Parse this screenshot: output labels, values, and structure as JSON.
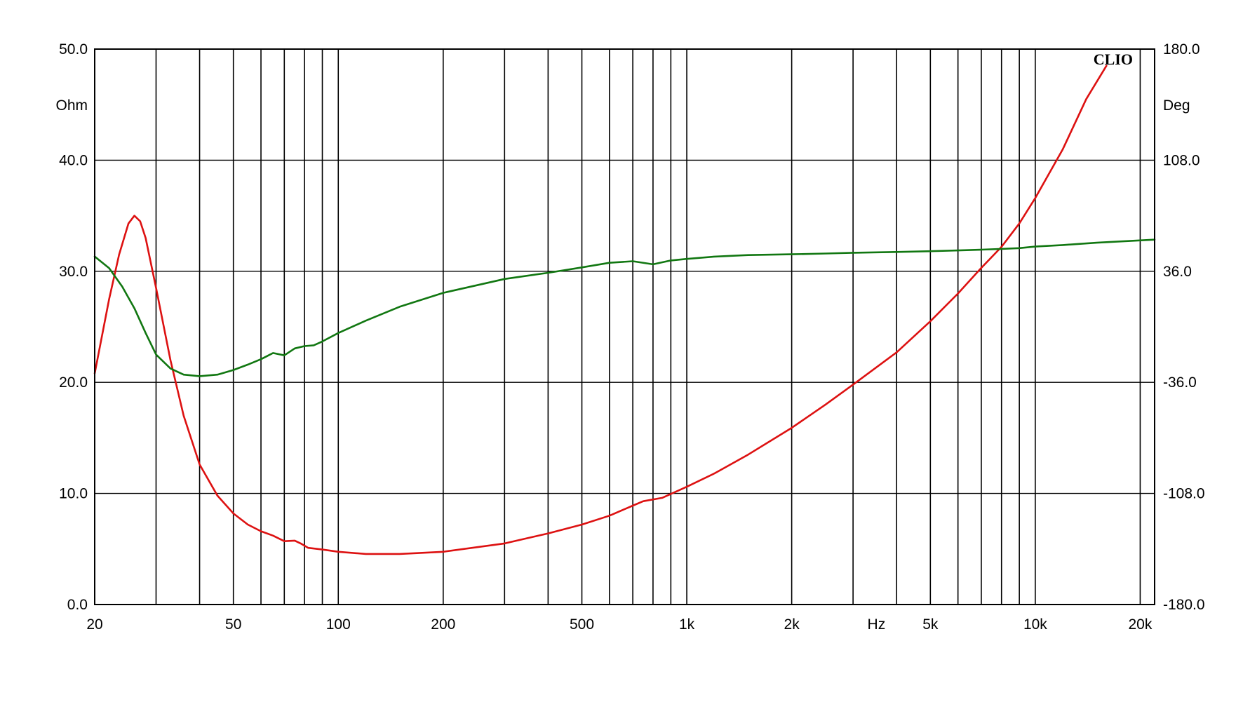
{
  "chart_data": {
    "type": "line",
    "brand": "CLIO",
    "x_scale": "log",
    "xlim": [
      20,
      22000
    ],
    "x_unit": "Hz",
    "y_left": {
      "unit": "Ohm",
      "ylim": [
        0,
        50
      ],
      "ticks": [
        "0.0",
        "10.0",
        "20.0",
        "30.0",
        "40.0",
        "50.0"
      ]
    },
    "y_right": {
      "unit": "Deg",
      "ylim": [
        -180,
        180
      ],
      "ticks": [
        "-180.0",
        "-108.0",
        "-36.0",
        "36.0",
        "108.0",
        "180.0"
      ]
    },
    "x_tick_labels": [
      {
        "value": 20,
        "label": "20"
      },
      {
        "value": 50,
        "label": "50"
      },
      {
        "value": 100,
        "label": "100"
      },
      {
        "value": 200,
        "label": "200"
      },
      {
        "value": 500,
        "label": "500"
      },
      {
        "value": 1000,
        "label": "1k"
      },
      {
        "value": 2000,
        "label": "2k"
      },
      {
        "value": 5000,
        "label": "5k"
      },
      {
        "value": 10000,
        "label": "10k"
      },
      {
        "value": 20000,
        "label": "20k"
      }
    ],
    "x_gridlines": [
      30,
      40,
      50,
      60,
      70,
      80,
      90,
      100,
      200,
      300,
      400,
      500,
      600,
      700,
      800,
      900,
      1000,
      2000,
      3000,
      4000,
      5000,
      6000,
      7000,
      8000,
      9000,
      10000,
      20000
    ],
    "grid": true,
    "colors": {
      "impedance": "#dd1111",
      "phase": "#117711",
      "grid": "#000000"
    },
    "series": [
      {
        "axis": "left",
        "color": "#dd1111",
        "points": [
          [
            20,
            20.8
          ],
          [
            22,
            27.5
          ],
          [
            23.5,
            31.5
          ],
          [
            25,
            34.3
          ],
          [
            26,
            35.0
          ],
          [
            27,
            34.5
          ],
          [
            28,
            33.0
          ],
          [
            30,
            28.5
          ],
          [
            33,
            22.0
          ],
          [
            36,
            17.0
          ],
          [
            40,
            12.6
          ],
          [
            45,
            9.8
          ],
          [
            50,
            8.2
          ],
          [
            55,
            7.2
          ],
          [
            60,
            6.6
          ],
          [
            65,
            6.2
          ],
          [
            70,
            5.7
          ],
          [
            75,
            5.75
          ],
          [
            78,
            5.5
          ],
          [
            82,
            5.1
          ],
          [
            90,
            4.95
          ],
          [
            100,
            4.75
          ],
          [
            120,
            4.55
          ],
          [
            150,
            4.55
          ],
          [
            200,
            4.75
          ],
          [
            300,
            5.5
          ],
          [
            400,
            6.4
          ],
          [
            500,
            7.2
          ],
          [
            600,
            8.0
          ],
          [
            700,
            8.9
          ],
          [
            750,
            9.3
          ],
          [
            850,
            9.6
          ],
          [
            1000,
            10.6
          ],
          [
            1200,
            11.8
          ],
          [
            1500,
            13.5
          ],
          [
            2000,
            15.9
          ],
          [
            2500,
            18.0
          ],
          [
            3000,
            19.8
          ],
          [
            4000,
            22.7
          ],
          [
            5000,
            25.5
          ],
          [
            6000,
            28.0
          ],
          [
            7000,
            30.3
          ],
          [
            8000,
            32.2
          ],
          [
            9000,
            34.3
          ],
          [
            10000,
            36.6
          ],
          [
            12000,
            41.0
          ],
          [
            14000,
            45.5
          ],
          [
            16000,
            48.5
          ]
        ]
      },
      {
        "axis": "right",
        "color": "#117711",
        "points": [
          [
            20,
            45.6
          ],
          [
            22,
            38.0
          ],
          [
            24,
            26.0
          ],
          [
            26,
            12.0
          ],
          [
            28,
            -4.0
          ],
          [
            30,
            -18.0
          ],
          [
            33,
            -27.0
          ],
          [
            36,
            -31.0
          ],
          [
            40,
            -32.0
          ],
          [
            45,
            -31.0
          ],
          [
            50,
            -28.0
          ],
          [
            55,
            -24.5
          ],
          [
            60,
            -21.0
          ],
          [
            65,
            -17.0
          ],
          [
            70,
            -18.5
          ],
          [
            75,
            -14.0
          ],
          [
            80,
            -12.5
          ],
          [
            85,
            -12.0
          ],
          [
            90,
            -9.5
          ],
          [
            100,
            -4.0
          ],
          [
            120,
            4.0
          ],
          [
            150,
            13.0
          ],
          [
            200,
            22.0
          ],
          [
            300,
            31.0
          ],
          [
            400,
            35.0
          ],
          [
            500,
            38.5
          ],
          [
            600,
            41.5
          ],
          [
            700,
            42.5
          ],
          [
            800,
            40.5
          ],
          [
            900,
            43.0
          ],
          [
            1000,
            44.0
          ],
          [
            1200,
            45.5
          ],
          [
            1500,
            46.5
          ],
          [
            2000,
            47.0
          ],
          [
            2500,
            47.5
          ],
          [
            3000,
            48.0
          ],
          [
            4000,
            48.5
          ],
          [
            5000,
            49.0
          ],
          [
            6000,
            49.5
          ],
          [
            7000,
            50.0
          ],
          [
            8000,
            50.5
          ],
          [
            9000,
            51.0
          ],
          [
            10000,
            52.0
          ],
          [
            12000,
            53.0
          ],
          [
            15000,
            54.5
          ],
          [
            22000,
            56.5
          ]
        ]
      }
    ]
  }
}
